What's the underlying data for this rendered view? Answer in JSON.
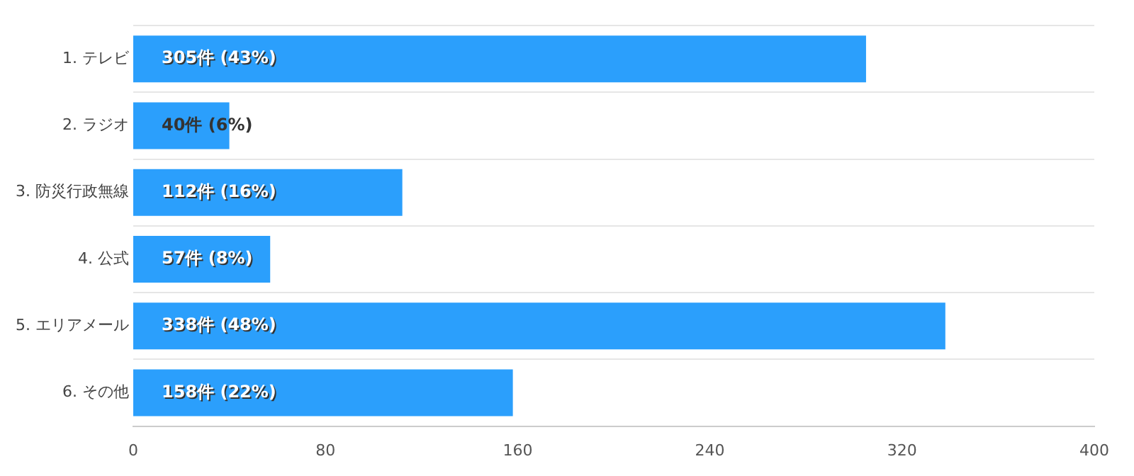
{
  "chart_data": {
    "type": "bar",
    "orientation": "horizontal",
    "categories": [
      "1. テレビ",
      "2. ラジオ",
      "3. 防災行政無線",
      "4. 公式",
      "5. エリアメール",
      "6. その他"
    ],
    "values": [
      305,
      40,
      112,
      57,
      338,
      158
    ],
    "value_labels": [
      "305件 (43%)",
      "40件 (6%)",
      "112件 (16%)",
      "57件 (8%)",
      "338件 (48%)",
      "158件 (22%)"
    ],
    "color": "#2b9ffc",
    "xlim": [
      0,
      400
    ],
    "xticks": [
      0,
      80,
      160,
      240,
      320,
      400
    ],
    "grid": "y",
    "legend": false
  }
}
